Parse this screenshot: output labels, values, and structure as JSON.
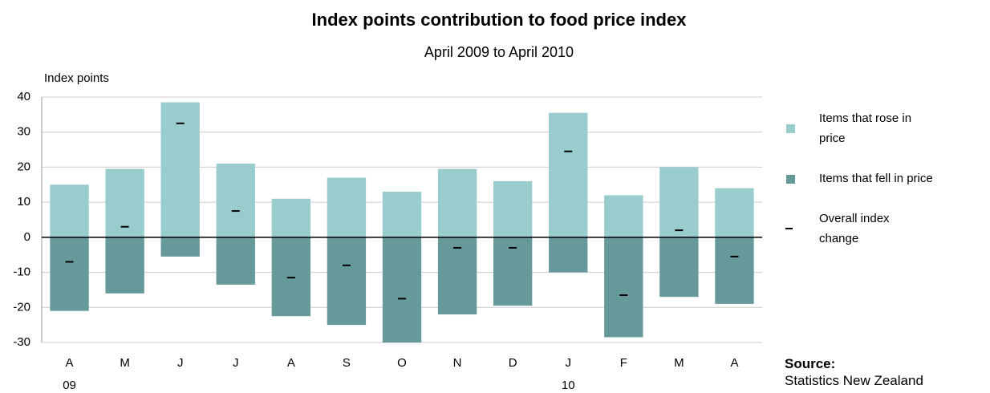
{
  "chart_data": {
    "type": "bar",
    "title": "Index points contribution to food price index",
    "subtitle": "April 2009 to April 2010",
    "y_label": "Index points",
    "categories": [
      "A",
      "M",
      "J",
      "J",
      "A",
      "S",
      "O",
      "N",
      "D",
      "J",
      "F",
      "M",
      "A"
    ],
    "year_labels": [
      "09",
      null,
      null,
      null,
      null,
      null,
      null,
      null,
      null,
      "10",
      null,
      null,
      null
    ],
    "series": [
      {
        "name": "Items that rose in price",
        "color": "#99cccc",
        "style": "bar",
        "values": [
          15,
          19.5,
          38.5,
          21,
          11,
          17,
          13,
          19.5,
          16,
          35.5,
          12,
          20,
          14
        ]
      },
      {
        "name": "Items that fell in price",
        "color": "#669999",
        "style": "bar",
        "values": [
          -21,
          -16,
          -5.5,
          -13.5,
          -22.5,
          -25,
          -30,
          -22,
          -19.5,
          -10,
          -28.5,
          -17,
          -19
        ]
      },
      {
        "name": "Overall index change",
        "color": "#000000",
        "style": "dash",
        "values": [
          -7,
          3,
          32.5,
          7.5,
          -11.5,
          -8,
          -17.5,
          -3,
          -3,
          24.5,
          -16.5,
          2,
          -5.5
        ]
      }
    ],
    "ylim": [
      -30,
      40
    ],
    "yticks": [
      -30,
      -20,
      -10,
      0,
      10,
      20,
      30,
      40
    ],
    "grid": true,
    "source_label": "Source:",
    "source": "Statistics New Zealand"
  }
}
